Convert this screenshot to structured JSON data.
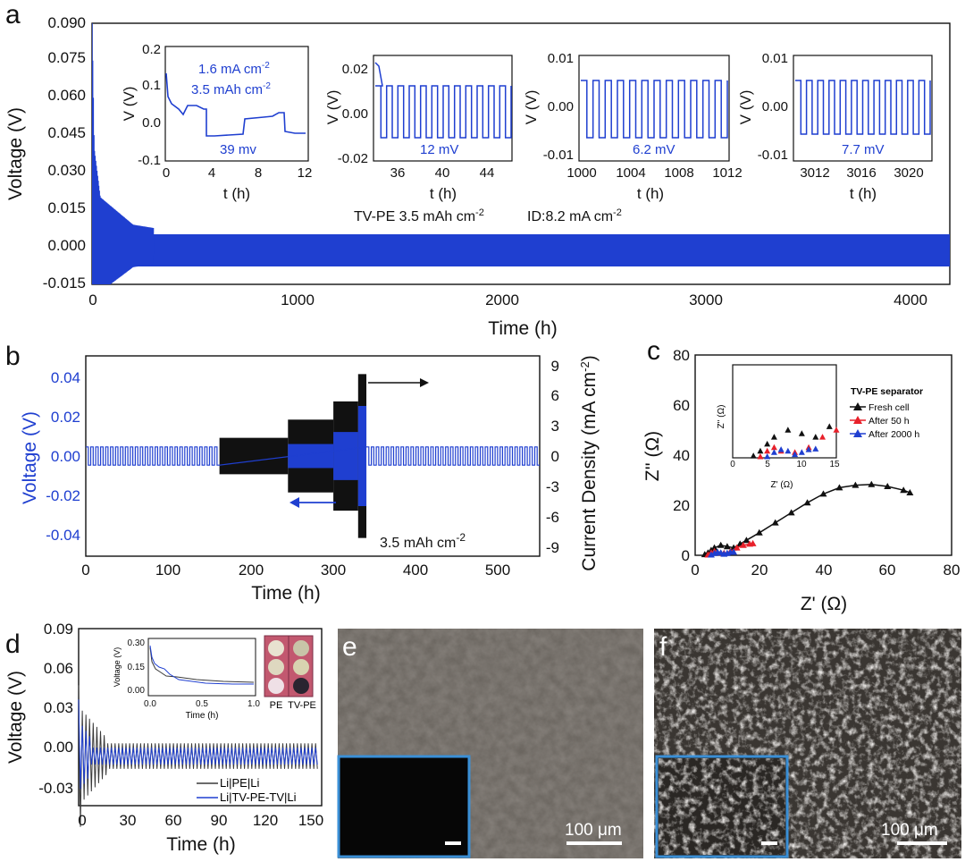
{
  "panels": {
    "a": "a",
    "b": "b",
    "c": "c",
    "d": "d",
    "e": "e",
    "f": "f"
  },
  "colors": {
    "blue": "#1f3fd0",
    "black": "#111111",
    "red": "#e8202a",
    "dark_gray": "#3a3a3a",
    "inset_border": "#3a8fd6"
  },
  "chart_data": [
    {
      "id": "a",
      "type": "line",
      "xlabel": "Time (h)",
      "ylabel": "Voltage (V)",
      "xlim": [
        0,
        4200
      ],
      "ylim": [
        -0.015,
        0.09
      ],
      "xticks": [
        "0",
        "1000",
        "2000",
        "3000",
        "4000"
      ],
      "yticks": [
        "-0.015",
        "0.000",
        "0.015",
        "0.030",
        "0.045",
        "0.060",
        "0.075",
        "0.090"
      ],
      "annotation": "TV-PE 3.5 mAh cm",
      "annotation_sup": "-2",
      "annotation2": "ID:8.2 mA cm",
      "annotation2_sup": "-2",
      "series": [
        {
          "values_envelope": [
            [
              0,
              0.09
            ],
            [
              10,
              0.04
            ],
            [
              40,
              0.02
            ],
            [
              200,
              0.009
            ],
            [
              500,
              0.005
            ],
            [
              2100,
              0.004
            ],
            [
              4200,
              0.004
            ]
          ]
        }
      ],
      "insets": [
        {
          "xlabel": "t (h)",
          "ylabel": "V (V)",
          "xticks": [
            "0",
            "4",
            "8",
            "12"
          ],
          "yticks": [
            "0.2",
            "0.1",
            "0.0",
            "-0.1"
          ],
          "labels": [
            "1.6 mA cm",
            "3.5 mAh cm",
            "39 mv"
          ],
          "sup": "-2"
        },
        {
          "xlabel": "t (h)",
          "ylabel": "V (V)",
          "xticks": [
            "36",
            "40",
            "44"
          ],
          "yticks": [
            "0.02",
            "0.00",
            "-0.02"
          ],
          "labels": [
            "12 mV"
          ]
        },
        {
          "xlabel": "t (h)",
          "ylabel": "V (V)",
          "xticks": [
            "1000",
            "1004",
            "1008",
            "1012"
          ],
          "yticks": [
            "0.01",
            "0.00",
            "-0.01"
          ],
          "labels": [
            "6.2 mV"
          ]
        },
        {
          "xlabel": "t (h)",
          "ylabel": "V (V)",
          "xticks": [
            "3012",
            "3016",
            "3020"
          ],
          "yticks": [
            "0.01",
            "0.00",
            "-0.01"
          ],
          "labels": [
            "7.7 mV"
          ]
        }
      ]
    },
    {
      "id": "b",
      "type": "line",
      "xlabel": "Time (h)",
      "ylabel": "Voltage (V)",
      "ylabel_right": "Current Density (mA cm",
      "ylabel_right_sup": "-2",
      "ylabel_right_close": ")",
      "xlim": [
        0,
        550
      ],
      "ylim": [
        -0.05,
        0.05
      ],
      "ylim_right": [
        -11,
        11
      ],
      "xticks": [
        "0",
        "100",
        "200",
        "300",
        "400",
        "500"
      ],
      "yticks": [
        "0.04",
        "0.02",
        "0.00",
        "-0.02",
        "-0.04"
      ],
      "yticks_right": [
        "9",
        "6",
        "3",
        "0",
        "-3",
        "-6",
        "-9"
      ],
      "annotation": "3.5 mAh cm",
      "annotation_sup": "-2",
      "current_steps": [
        [
          0,
          1
        ],
        [
          162,
          2
        ],
        [
          245,
          4
        ],
        [
          300,
          6
        ],
        [
          330,
          9
        ],
        [
          340,
          1
        ]
      ]
    },
    {
      "id": "c",
      "type": "scatter",
      "xlabel": "Z' (Ω)",
      "ylabel": "Z'' (Ω)",
      "xlim": [
        0,
        80
      ],
      "ylim": [
        0,
        80
      ],
      "xticks": [
        "0",
        "20",
        "40",
        "60",
        "80"
      ],
      "yticks": [
        "80",
        "60",
        "40",
        "20",
        "0"
      ],
      "legend_title": "TV-PE separator",
      "series": [
        {
          "name": "Fresh cell",
          "color": "#111111",
          "points": [
            [
              3,
              0.3
            ],
            [
              4,
              1
            ],
            [
              5,
              2
            ],
            [
              6,
              3
            ],
            [
              8,
              4
            ],
            [
              10,
              3.5
            ],
            [
              12,
              3
            ],
            [
              14,
              4.5
            ],
            [
              16,
              6
            ],
            [
              20,
              9
            ],
            [
              25,
              13
            ],
            [
              30,
              17
            ],
            [
              35,
              21
            ],
            [
              40,
              24.5
            ],
            [
              45,
              27
            ],
            [
              50,
              28
            ],
            [
              55,
              28.3
            ],
            [
              60,
              27.5
            ],
            [
              65,
              26
            ],
            [
              67,
              25
            ]
          ]
        },
        {
          "name": "After 50 h",
          "color": "#e8202a",
          "points": [
            [
              4,
              0.2
            ],
            [
              5,
              1
            ],
            [
              6,
              1.5
            ],
            [
              7,
              1
            ],
            [
              9,
              0.8
            ],
            [
              11,
              1.5
            ],
            [
              13,
              3
            ],
            [
              15,
              4
            ],
            [
              17,
              4.5
            ],
            [
              18,
              4.7
            ]
          ]
        },
        {
          "name": "After 2000 h",
          "color": "#1f3fd0",
          "points": [
            [
              5,
              0.2
            ],
            [
              6,
              0.8
            ],
            [
              7,
              1.2
            ],
            [
              8,
              1
            ],
            [
              9,
              0.5
            ],
            [
              10,
              0.8
            ],
            [
              11,
              1.2
            ],
            [
              12,
              1.3
            ]
          ]
        }
      ],
      "inset": {
        "xlabel": "Z' (Ω)",
        "ylabel": "Z'' (Ω)",
        "xticks": [
          "0",
          "5",
          "10",
          "15"
        ],
        "xlim": [
          0,
          15
        ],
        "ylim": [
          0,
          12
        ]
      }
    },
    {
      "id": "d",
      "type": "line",
      "xlabel": "Time (h)",
      "ylabel": "Voltage (V)",
      "xlim": [
        0,
        160
      ],
      "ylim": [
        -0.035,
        0.09
      ],
      "xticks": [
        "0",
        "30",
        "60",
        "90",
        "120",
        "150"
      ],
      "yticks": [
        "0.09",
        "0.06",
        "0.03",
        "0.00",
        "-0.03"
      ],
      "series": [
        {
          "name": "Li|PE|Li",
          "color": "#3a3a3a"
        },
        {
          "name": "Li|TV-PE-TV|Li",
          "color": "#1f3fd0"
        }
      ],
      "inset": {
        "xlabel": "Time (h)",
        "ylabel": "Voltage (V)",
        "xticks": [
          "0.0",
          "0.5",
          "1.0"
        ],
        "yticks": [
          "0.30",
          "0.15",
          "0.00"
        ]
      },
      "photo_labels": [
        "PE",
        "TV-PE"
      ]
    }
  ],
  "images": {
    "e": {
      "scale_label": "100 μm"
    },
    "f": {
      "scale_label": "100 μm"
    }
  }
}
